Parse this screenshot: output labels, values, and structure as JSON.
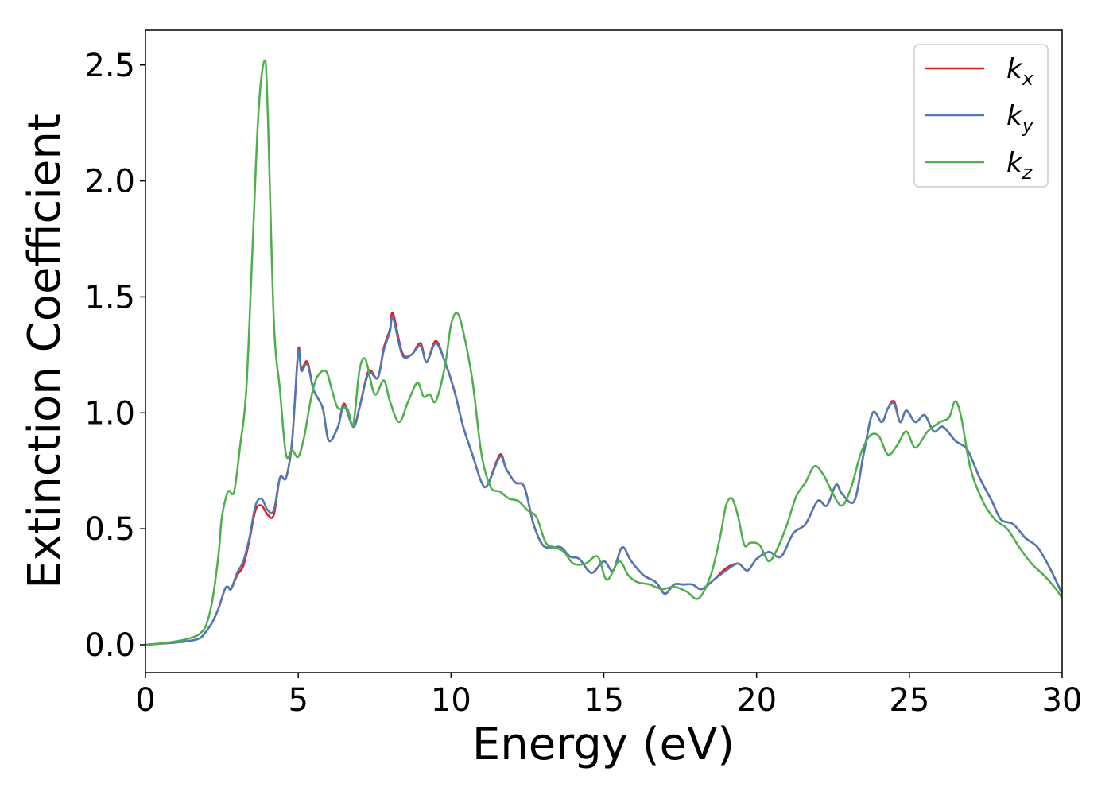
{
  "chart_data": {
    "type": "line",
    "xlabel": "Energy (eV)",
    "ylabel": "Extinction Coefficient",
    "xlim": [
      0,
      30
    ],
    "ylim": [
      -0.12,
      2.65
    ],
    "xticks": [
      0,
      5,
      10,
      15,
      20,
      25,
      30
    ],
    "xtick_labels": [
      "0",
      "5",
      "10",
      "15",
      "20",
      "25",
      "30"
    ],
    "yticks": [
      0.0,
      0.5,
      1.0,
      1.5,
      2.0,
      2.5
    ],
    "ytick_labels": [
      "0.0",
      "0.5",
      "1.0",
      "1.5",
      "2.0",
      "2.5"
    ],
    "grid": false,
    "legend_position": "top-right",
    "series": [
      {
        "name": "k_x",
        "legend_base": "k",
        "legend_sub": "x",
        "color": "#e41a1c",
        "x": [
          0,
          0.5,
          1,
          1.5,
          1.8,
          2.0,
          2.2,
          2.4,
          2.6,
          2.7,
          2.8,
          3.0,
          3.2,
          3.4,
          3.6,
          3.8,
          4.0,
          4.2,
          4.4,
          4.6,
          4.8,
          5.0,
          5.1,
          5.3,
          5.5,
          5.8,
          6.0,
          6.3,
          6.5,
          6.8,
          7.0,
          7.3,
          7.6,
          7.8,
          8.0,
          8.1,
          8.4,
          8.7,
          9.0,
          9.2,
          9.5,
          9.8,
          10.1,
          10.4,
          10.7,
          11.0,
          11.2,
          11.6,
          11.8,
          12.1,
          12.4,
          12.7,
          13.0,
          13.3,
          13.6,
          13.9,
          14.2,
          14.6,
          15.0,
          15.3,
          15.6,
          15.9,
          16.3,
          16.7,
          17.0,
          17.3,
          17.6,
          17.9,
          18.2,
          18.6,
          19.0,
          19.4,
          19.7,
          20.0,
          20.4,
          20.8,
          21.2,
          21.6,
          22.0,
          22.3,
          22.6,
          22.8,
          23.2,
          23.5,
          23.8,
          24.1,
          24.3,
          24.5,
          24.7,
          24.9,
          25.2,
          25.5,
          25.8,
          26.1,
          26.5,
          26.9,
          27.3,
          27.7,
          28.0,
          28.4,
          28.8,
          29.2,
          29.6,
          30.0
        ],
        "values": [
          0.0,
          0.005,
          0.01,
          0.018,
          0.03,
          0.06,
          0.1,
          0.16,
          0.24,
          0.25,
          0.24,
          0.3,
          0.34,
          0.45,
          0.58,
          0.6,
          0.56,
          0.56,
          0.72,
          0.72,
          0.88,
          1.27,
          1.19,
          1.22,
          1.1,
          1.02,
          0.88,
          0.94,
          1.04,
          0.94,
          1.02,
          1.18,
          1.15,
          1.28,
          1.36,
          1.43,
          1.26,
          1.25,
          1.3,
          1.22,
          1.31,
          1.22,
          1.1,
          0.94,
          0.82,
          0.7,
          0.69,
          0.82,
          0.76,
          0.7,
          0.68,
          0.52,
          0.43,
          0.42,
          0.42,
          0.38,
          0.37,
          0.31,
          0.36,
          0.32,
          0.42,
          0.36,
          0.3,
          0.27,
          0.22,
          0.26,
          0.26,
          0.26,
          0.24,
          0.28,
          0.33,
          0.35,
          0.32,
          0.37,
          0.4,
          0.38,
          0.48,
          0.52,
          0.62,
          0.6,
          0.69,
          0.65,
          0.62,
          0.82,
          1.0,
          0.96,
          1.02,
          1.05,
          0.96,
          1.01,
          0.96,
          0.99,
          0.92,
          0.94,
          0.88,
          0.84,
          0.72,
          0.62,
          0.54,
          0.52,
          0.46,
          0.42,
          0.33,
          0.22
        ]
      },
      {
        "name": "k_y",
        "legend_base": "k",
        "legend_sub": "y",
        "color": "#4c7ab7",
        "x": [
          0,
          0.5,
          1,
          1.5,
          1.8,
          2.0,
          2.2,
          2.4,
          2.6,
          2.7,
          2.8,
          3.0,
          3.2,
          3.4,
          3.6,
          3.8,
          4.0,
          4.2,
          4.4,
          4.6,
          4.8,
          5.0,
          5.1,
          5.3,
          5.5,
          5.8,
          6.0,
          6.3,
          6.5,
          6.8,
          7.0,
          7.3,
          7.6,
          7.8,
          8.0,
          8.1,
          8.4,
          8.7,
          9.0,
          9.2,
          9.5,
          9.8,
          10.1,
          10.4,
          10.7,
          11.0,
          11.2,
          11.6,
          11.8,
          12.1,
          12.4,
          12.7,
          13.0,
          13.3,
          13.6,
          13.9,
          14.2,
          14.6,
          15.0,
          15.3,
          15.6,
          15.9,
          16.3,
          16.7,
          17.0,
          17.3,
          17.6,
          17.9,
          18.2,
          18.6,
          19.0,
          19.4,
          19.7,
          20.0,
          20.4,
          20.8,
          21.2,
          21.6,
          22.0,
          22.3,
          22.6,
          22.8,
          23.2,
          23.5,
          23.8,
          24.1,
          24.3,
          24.5,
          24.7,
          24.9,
          25.2,
          25.5,
          25.8,
          26.1,
          26.5,
          26.9,
          27.3,
          27.7,
          28.0,
          28.4,
          28.8,
          29.2,
          29.6,
          30.0
        ],
        "values": [
          0.0,
          0.005,
          0.01,
          0.018,
          0.03,
          0.06,
          0.1,
          0.16,
          0.24,
          0.25,
          0.24,
          0.31,
          0.36,
          0.46,
          0.6,
          0.63,
          0.58,
          0.58,
          0.72,
          0.72,
          0.88,
          1.26,
          1.18,
          1.21,
          1.1,
          1.02,
          0.88,
          0.94,
          1.03,
          0.94,
          1.02,
          1.17,
          1.15,
          1.27,
          1.35,
          1.41,
          1.25,
          1.25,
          1.29,
          1.22,
          1.3,
          1.22,
          1.1,
          0.94,
          0.82,
          0.7,
          0.69,
          0.81,
          0.76,
          0.7,
          0.68,
          0.52,
          0.43,
          0.42,
          0.42,
          0.38,
          0.37,
          0.31,
          0.36,
          0.32,
          0.42,
          0.36,
          0.3,
          0.27,
          0.22,
          0.26,
          0.26,
          0.26,
          0.24,
          0.28,
          0.32,
          0.35,
          0.32,
          0.37,
          0.4,
          0.38,
          0.48,
          0.52,
          0.62,
          0.6,
          0.69,
          0.65,
          0.62,
          0.82,
          1.0,
          0.96,
          1.02,
          1.04,
          0.96,
          1.01,
          0.96,
          0.99,
          0.92,
          0.94,
          0.88,
          0.84,
          0.72,
          0.62,
          0.54,
          0.52,
          0.46,
          0.42,
          0.33,
          0.22
        ]
      },
      {
        "name": "k_z",
        "legend_base": "k",
        "legend_sub": "z",
        "color": "#4daf4a",
        "x": [
          0,
          0.5,
          1,
          1.5,
          1.8,
          2.0,
          2.2,
          2.4,
          2.5,
          2.7,
          2.9,
          3.1,
          3.3,
          3.5,
          3.7,
          3.9,
          4.0,
          4.2,
          4.4,
          4.6,
          4.8,
          5.0,
          5.2,
          5.4,
          5.6,
          5.9,
          6.1,
          6.3,
          6.6,
          6.8,
          7.0,
          7.2,
          7.5,
          7.8,
          8.0,
          8.3,
          8.6,
          8.9,
          9.1,
          9.3,
          9.5,
          9.8,
          10.0,
          10.2,
          10.4,
          10.7,
          11.0,
          11.3,
          11.6,
          11.9,
          12.2,
          12.5,
          12.8,
          13.1,
          13.4,
          13.7,
          14.0,
          14.4,
          14.8,
          15.1,
          15.5,
          15.8,
          16.1,
          16.5,
          16.9,
          17.3,
          17.7,
          18.1,
          18.5,
          18.8,
          19.0,
          19.2,
          19.4,
          19.6,
          19.8,
          20.1,
          20.4,
          20.7,
          21.0,
          21.3,
          21.6,
          21.9,
          22.2,
          22.5,
          22.8,
          23.1,
          23.4,
          23.7,
          24.0,
          24.3,
          24.6,
          24.9,
          25.2,
          25.6,
          26.0,
          26.3,
          26.5,
          26.7,
          27.0,
          27.4,
          27.8,
          28.2,
          28.6,
          29.0,
          29.4,
          29.8,
          30.0
        ],
        "values": [
          0.0,
          0.006,
          0.015,
          0.03,
          0.05,
          0.09,
          0.2,
          0.4,
          0.55,
          0.66,
          0.66,
          0.86,
          1.1,
          1.7,
          2.3,
          2.52,
          2.3,
          1.4,
          1.1,
          0.82,
          0.84,
          0.81,
          0.9,
          1.05,
          1.15,
          1.18,
          1.1,
          1.02,
          1.02,
          0.95,
          1.18,
          1.23,
          1.08,
          1.14,
          1.05,
          0.96,
          1.05,
          1.13,
          1.07,
          1.08,
          1.05,
          1.2,
          1.38,
          1.43,
          1.35,
          1.14,
          0.82,
          0.68,
          0.66,
          0.63,
          0.62,
          0.58,
          0.55,
          0.44,
          0.42,
          0.4,
          0.35,
          0.35,
          0.38,
          0.28,
          0.36,
          0.3,
          0.27,
          0.26,
          0.24,
          0.25,
          0.23,
          0.2,
          0.3,
          0.46,
          0.6,
          0.63,
          0.55,
          0.43,
          0.44,
          0.43,
          0.36,
          0.42,
          0.52,
          0.64,
          0.7,
          0.77,
          0.73,
          0.65,
          0.6,
          0.68,
          0.82,
          0.9,
          0.9,
          0.82,
          0.86,
          0.92,
          0.85,
          0.92,
          0.96,
          0.98,
          1.05,
          0.98,
          0.76,
          0.62,
          0.54,
          0.5,
          0.42,
          0.35,
          0.3,
          0.24,
          0.2
        ]
      }
    ]
  }
}
